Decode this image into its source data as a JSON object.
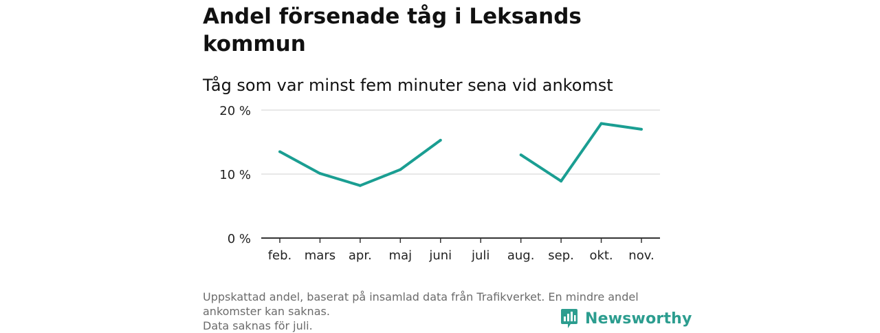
{
  "title": "Andel försenade tåg i Leksands kommun",
  "subtitle": "Tåg som var minst fem minuter sena vid ankomst",
  "footer": {
    "line1": "Uppskattad andel, baserat på insamlad data från Trafikverket. En mindre andel",
    "line2": "ankomster kan saknas.",
    "line3": "Data saknas för juli."
  },
  "brand": {
    "name": "Newsworthy",
    "icon": "newsworthy-logo-icon",
    "color": "#2c9d8f"
  },
  "chart_data": {
    "type": "line",
    "title": "Andel försenade tåg i Leksands kommun",
    "subtitle": "Tåg som var minst fem minuter sena vid ankomst",
    "xlabel": "",
    "ylabel": "",
    "categories": [
      "feb.",
      "mars",
      "apr.",
      "maj",
      "juni",
      "juli",
      "aug.",
      "sep.",
      "okt.",
      "nov."
    ],
    "series": [
      {
        "values": [
          13.5,
          10.1,
          8.2,
          10.7,
          15.3,
          null,
          13.0,
          8.9,
          17.9,
          17.0
        ],
        "color": "#1a9e92"
      }
    ],
    "y_ticks": [
      {
        "value": 0,
        "label": "0 %"
      },
      {
        "value": 10,
        "label": "10 %"
      },
      {
        "value": 20,
        "label": "20 %"
      }
    ],
    "ylim": [
      0,
      20
    ],
    "grid": true,
    "legend": "none"
  }
}
